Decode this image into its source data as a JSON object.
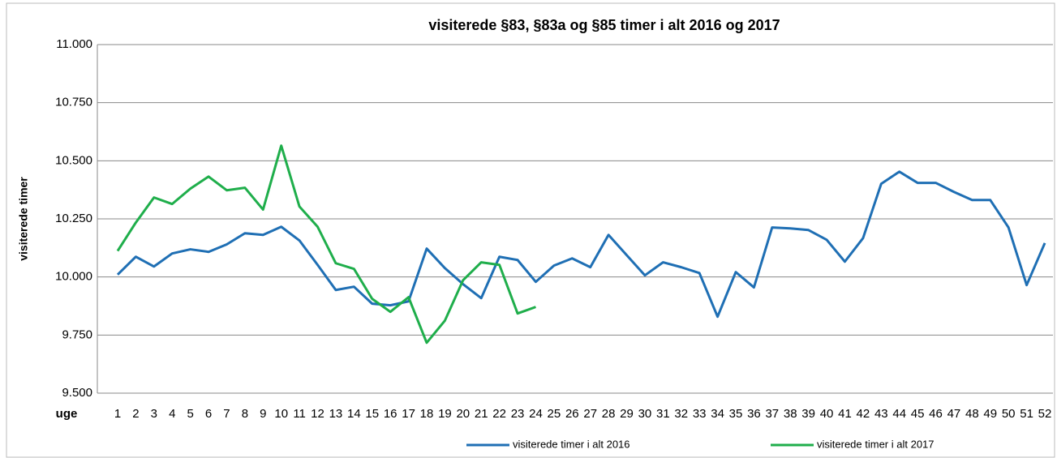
{
  "chart_data": {
    "type": "line",
    "title": "visiterede §83, §83a og §85 timer i alt 2016 og 2017",
    "y_label": "visiterede timer",
    "x_label": "uge",
    "categories": [
      "1",
      "2",
      "3",
      "4",
      "5",
      "6",
      "7",
      "8",
      "9",
      "10",
      "11",
      "12",
      "13",
      "14",
      "15",
      "16",
      "17",
      "18",
      "19",
      "20",
      "21",
      "22",
      "23",
      "24",
      "25",
      "26",
      "27",
      "28",
      "29",
      "30",
      "31",
      "32",
      "33",
      "34",
      "35",
      "36",
      "37",
      "38",
      "39",
      "40",
      "41",
      "42",
      "43",
      "44",
      "45",
      "46",
      "47",
      "48",
      "49",
      "50",
      "51",
      "52"
    ],
    "series": [
      {
        "name": "visiterede timer i alt 2016",
        "color": "#1f6fb4",
        "values": [
          10010,
          10087,
          10045,
          10101,
          10119,
          10108,
          10140,
          10188,
          10181,
          10216,
          10157,
          10052,
          9944,
          9958,
          9885,
          9878,
          9895,
          10122,
          10038,
          9969,
          9909,
          10087,
          10073,
          9979,
          10049,
          10080,
          10042,
          10181,
          10094,
          10007,
          10063,
          10042,
          10017,
          9829,
          10021,
          9955,
          10213,
          10209,
          10202,
          10160,
          10066,
          10167,
          10401,
          10453,
          10405,
          10405,
          10366,
          10331,
          10331,
          10213,
          9965,
          10146
        ]
      },
      {
        "name": "visiterede timer i alt 2017",
        "color": "#1fae4b",
        "values": [
          10112,
          10234,
          10342,
          10314,
          10380,
          10432,
          10373,
          10384,
          10290,
          10565,
          10303,
          10216,
          10059,
          10035,
          9906,
          9850,
          9913,
          9717,
          9812,
          9986,
          10063,
          10052,
          9843,
          9871,
          null,
          null,
          null,
          null,
          null,
          null,
          null,
          null,
          null,
          null,
          null,
          null,
          null,
          null,
          null,
          null,
          null,
          null,
          null,
          null,
          null,
          null,
          null,
          null,
          null,
          null,
          null,
          null
        ]
      }
    ],
    "ylim": [
      9500,
      11000
    ],
    "yticks": [
      {
        "value": 9500,
        "label": "9.500"
      },
      {
        "value": 9750,
        "label": "9.750"
      },
      {
        "value": 10000,
        "label": "10.000"
      },
      {
        "value": 10250,
        "label": "10.250"
      },
      {
        "value": 10500,
        "label": "10.500"
      },
      {
        "value": 10750,
        "label": "10.750"
      },
      {
        "value": 11000,
        "label": "11.000"
      }
    ],
    "grid": true,
    "legend": "bottom"
  }
}
